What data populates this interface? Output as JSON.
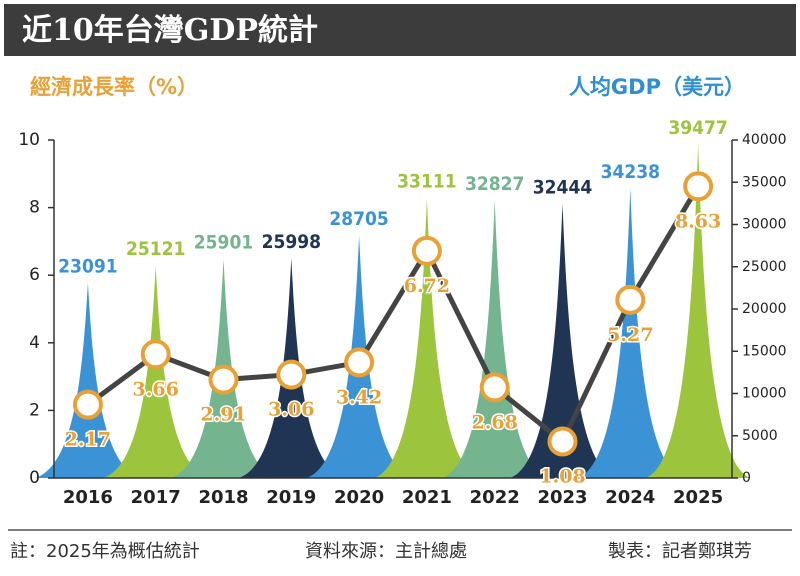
{
  "chart_data": {
    "type": "combo",
    "title": "近10年台灣GDP統計",
    "categories": [
      "2016",
      "2017",
      "2018",
      "2019",
      "2020",
      "2021",
      "2022",
      "2023",
      "2024",
      "2025"
    ],
    "series": [
      {
        "name": "人均GDP（美元）",
        "type": "spike",
        "axis": "y2",
        "color": "#2f8fd3",
        "values": [
          23091,
          25121,
          25901,
          25998,
          28705,
          33111,
          32827,
          32444,
          34238,
          39477
        ],
        "colors": [
          "#3b93d6",
          "#9cc43c",
          "#74b48e",
          "#1f3553",
          "#3b93d6",
          "#9cc43c",
          "#74b48e",
          "#1f3553",
          "#3b93d6",
          "#9cc43c"
        ]
      },
      {
        "name": "經濟成長率（%）",
        "type": "line",
        "axis": "y",
        "color": "#e9a136",
        "values": [
          2.17,
          3.66,
          2.91,
          3.06,
          3.42,
          6.72,
          2.68,
          1.08,
          5.27,
          8.63
        ]
      }
    ],
    "ylim": [
      0,
      10
    ],
    "yticks": [
      0,
      2,
      4,
      6,
      8,
      10
    ],
    "y2lim": [
      0,
      40000
    ],
    "y2ticks": [
      0,
      5000,
      10000,
      15000,
      20000,
      25000,
      30000,
      35000,
      40000
    ]
  },
  "notes": [
    "註：2025年為概估統計",
    "資料來源：主計總處",
    "製表：記者鄭琪芳"
  ]
}
